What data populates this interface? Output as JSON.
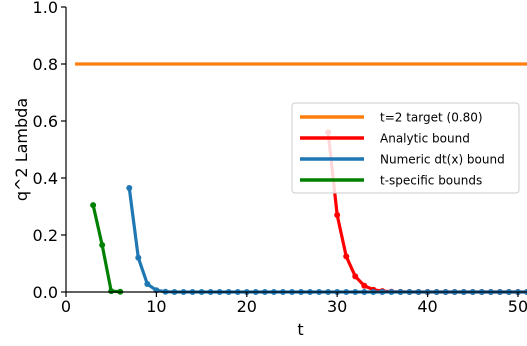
{
  "chart_data": {
    "type": "line",
    "xlabel": "t",
    "ylabel": "q^2 Lambda",
    "xlim": [
      0,
      51
    ],
    "ylim": [
      0,
      1
    ],
    "x_ticks": [
      "0",
      "10",
      "20",
      "30",
      "40",
      "50"
    ],
    "y_ticks": [
      "0.0",
      "0.2",
      "0.4",
      "0.6",
      "0.8",
      "1.0"
    ],
    "grid": false,
    "legend_position": "center-right",
    "series": [
      {
        "name": "t=2 target (0.80)",
        "color": "#ff7f0e",
        "markers": false,
        "x": [
          1,
          51
        ],
        "y": [
          0.8,
          0.8
        ]
      },
      {
        "name": "Analytic bound",
        "color": "#ff0000",
        "markers": true,
        "x": [
          29,
          30,
          31,
          32,
          33,
          34,
          35,
          36,
          37,
          38,
          39,
          40,
          41,
          42,
          43,
          44,
          45,
          46,
          47,
          48,
          49,
          50,
          51
        ],
        "y": [
          0.56,
          0.27,
          0.125,
          0.055,
          0.022,
          0.008,
          0.003,
          0.001,
          0.0005,
          0.0002,
          0.0001,
          0,
          0,
          0,
          0,
          0,
          0,
          0,
          0,
          0,
          0,
          0,
          0
        ]
      },
      {
        "name": "Numeric dt(x) bound",
        "color": "#1f77b4",
        "markers": true,
        "x": [
          7,
          8,
          9,
          10,
          11,
          12,
          13,
          14,
          15,
          16,
          17,
          18,
          19,
          20,
          21,
          22,
          23,
          24,
          25,
          26,
          27,
          28,
          29,
          30,
          31,
          32,
          33,
          34,
          35,
          36,
          37,
          38,
          39,
          40,
          41,
          42,
          43,
          44,
          45,
          46,
          47,
          48,
          49,
          50,
          51
        ],
        "y": [
          0.365,
          0.12,
          0.028,
          0.006,
          0.001,
          0,
          0,
          0,
          0,
          0,
          0,
          0,
          0,
          0,
          0,
          0,
          0,
          0,
          0,
          0,
          0,
          0,
          0,
          0,
          0,
          0,
          0,
          0,
          0,
          0,
          0,
          0,
          0,
          0,
          0,
          0,
          0,
          0,
          0,
          0,
          0,
          0,
          0,
          0,
          0
        ]
      },
      {
        "name": "t-specific bounds",
        "color": "#008000",
        "markers": true,
        "x": [
          3,
          4,
          5,
          6
        ],
        "y": [
          0.305,
          0.165,
          0.003,
          0.001
        ]
      }
    ]
  }
}
